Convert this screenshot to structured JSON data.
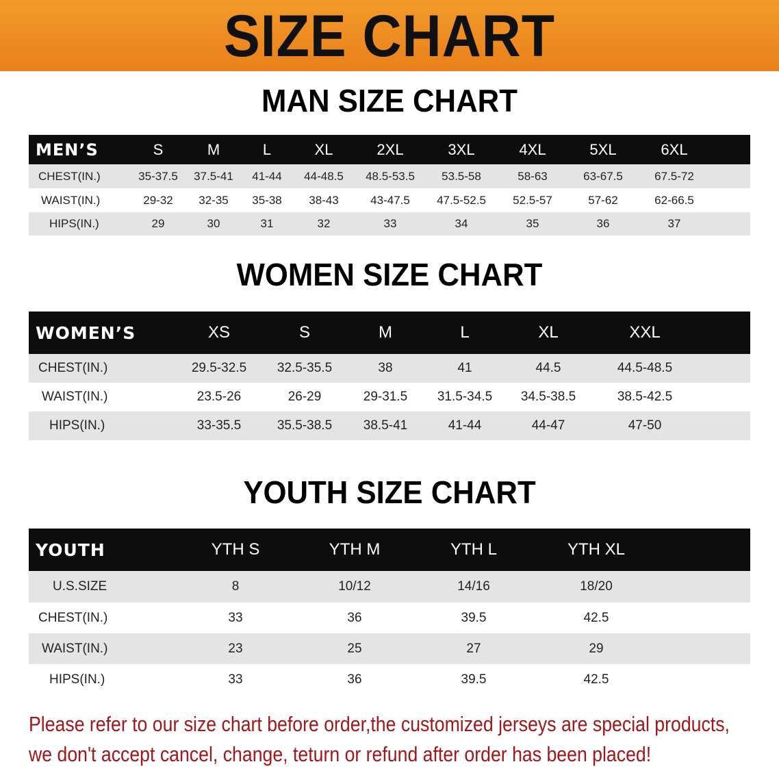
{
  "banner": {
    "title": "SIZE CHART",
    "color": "#ed8a20"
  },
  "men": {
    "title": "MAN SIZE CHART",
    "header": "MEN’S",
    "sizes": [
      "S",
      "M",
      "L",
      "XL",
      "2XL",
      "3XL",
      "4XL",
      "5XL",
      "6XL"
    ],
    "rows": [
      {
        "label": "CHEST(IN.)",
        "values": [
          "35-37.5",
          "37.5-41",
          "41-44",
          "44-48.5",
          "48.5-53.5",
          "53.5-58",
          "58-63",
          "63-67.5",
          "67.5-72"
        ]
      },
      {
        "label": "WAIST(IN.)",
        "values": [
          "29-32",
          "32-35",
          "35-38",
          "38-43",
          "43-47.5",
          "47.5-52.5",
          "52.5-57",
          "57-62",
          "62-66.5"
        ]
      },
      {
        "label": "HIPS(IN.)",
        "values": [
          "29",
          "30",
          "31",
          "32",
          "33",
          "34",
          "35",
          "36",
          "37"
        ]
      }
    ]
  },
  "women": {
    "title": "WOMEN SIZE CHART",
    "header": "WOMEN’S",
    "sizes": [
      "XS",
      "S",
      "M",
      "L",
      "XL",
      "XXL"
    ],
    "rows": [
      {
        "label": "CHEST(IN.)",
        "values": [
          "29.5-32.5",
          "32.5-35.5",
          "38",
          "41",
          "44.5",
          "44.5-48.5"
        ]
      },
      {
        "label": "WAIST(IN.)",
        "values": [
          "23.5-26",
          "26-29",
          "29-31.5",
          "31.5-34.5",
          "34.5-38.5",
          "38.5-42.5"
        ]
      },
      {
        "label": "HIPS(IN.)",
        "values": [
          "33-35.5",
          "35.5-38.5",
          "38.5-41",
          "41-44",
          "44-47",
          "47-50"
        ]
      }
    ]
  },
  "youth": {
    "title": "YOUTH SIZE CHART",
    "header": "YOUTH",
    "sizes": [
      "YTH S",
      "YTH M",
      "YTH L",
      "YTH XL"
    ],
    "rows": [
      {
        "label": "U.S.SIZE",
        "values": [
          "8",
          "10/12",
          "14/16",
          "18/20"
        ]
      },
      {
        "label": "CHEST(IN.)",
        "values": [
          "33",
          "36",
          "39.5",
          "42.5"
        ]
      },
      {
        "label": "WAIST(IN.)",
        "values": [
          "23",
          "25",
          "27",
          "29"
        ]
      },
      {
        "label": "HIPS(IN.)",
        "values": [
          "33",
          "36",
          "39.5",
          "42.5"
        ]
      }
    ]
  },
  "notice": {
    "line1": "Please refer to our size chart before order,the customized jerseys are special products,",
    "line2": "we don't accept cancel, change, teturn or refund after order has been placed!",
    "color": "#a3161a"
  }
}
